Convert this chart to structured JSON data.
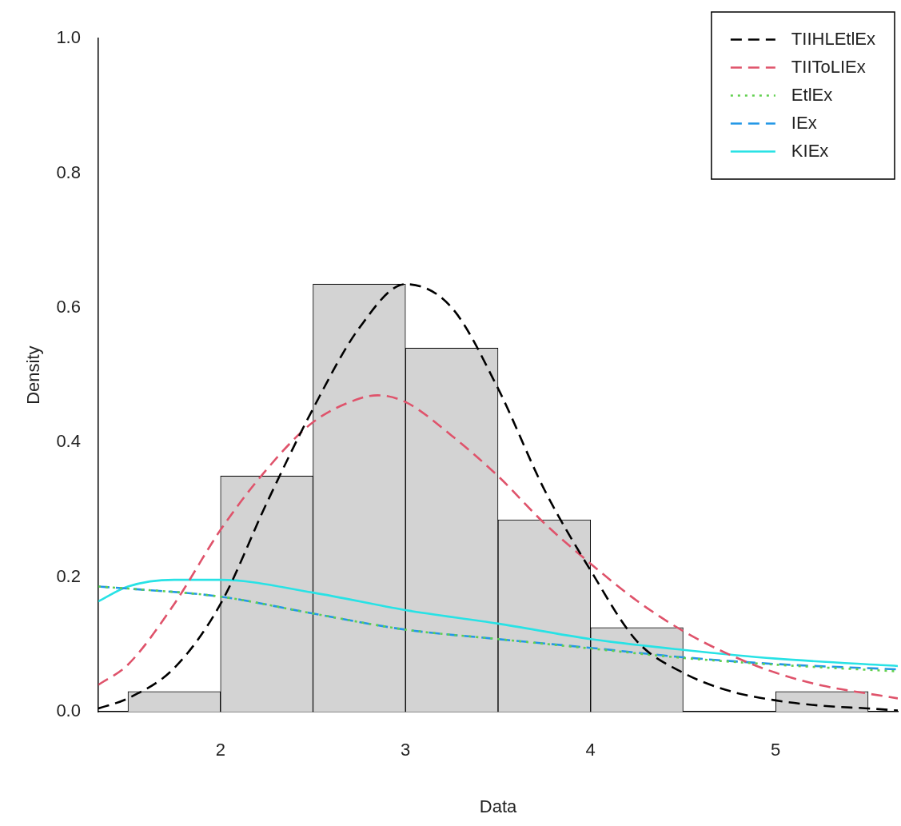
{
  "chart_data": {
    "type": "histogram",
    "xlabel": "Data",
    "ylabel": "Density",
    "color": "#d3d3d3",
    "bins": [
      1.5,
      2,
      2.5,
      3,
      3.5,
      4,
      4.5,
      5,
      5.5
    ],
    "values": [
      0.03,
      0.35,
      0.635,
      0.54,
      0.285,
      0.125,
      0,
      0.03
    ],
    "xlim": [
      1.34,
      5.66
    ],
    "ylim": [
      0,
      1
    ],
    "xticks": [
      2,
      3,
      4,
      5
    ],
    "yticks": [
      {
        "value": 0,
        "label": "0.0"
      },
      {
        "value": 0.2,
        "label": "0.2"
      },
      {
        "value": 0.4,
        "label": "0.4"
      },
      {
        "value": 0.6,
        "label": "0.6"
      },
      {
        "value": 0.8,
        "label": "0.8"
      },
      {
        "value": 1,
        "label": "1.0"
      }
    ],
    "grid": false,
    "legend": "top right",
    "series": [
      {
        "name": "TIIHLEtlEx",
        "type": "line",
        "color": "#000000",
        "line_style": "dashed",
        "x": [
          1.34,
          1.5,
          1.75,
          2,
          2.25,
          2.5,
          2.75,
          3,
          3.25,
          3.5,
          3.75,
          4,
          4.25,
          4.5,
          4.75,
          5,
          5.25,
          5.5,
          5.66
        ],
        "values": [
          0.005,
          0.02,
          0.065,
          0.16,
          0.31,
          0.45,
          0.57,
          0.635,
          0.6,
          0.48,
          0.33,
          0.21,
          0.105,
          0.058,
          0.031,
          0.017,
          0.009,
          0.005,
          0.002
        ]
      },
      {
        "name": "TIIToLIEx",
        "type": "line",
        "color": "#df536b",
        "line_style": "dashed",
        "x": [
          1.34,
          1.5,
          1.75,
          2,
          2.25,
          2.5,
          2.75,
          2.85,
          3,
          3.25,
          3.5,
          3.75,
          4,
          4.25,
          4.5,
          4.75,
          5,
          5.25,
          5.5,
          5.66
        ],
        "values": [
          0.04,
          0.07,
          0.16,
          0.27,
          0.36,
          0.43,
          0.465,
          0.47,
          0.46,
          0.41,
          0.35,
          0.28,
          0.22,
          0.165,
          0.12,
          0.085,
          0.058,
          0.039,
          0.027,
          0.02
        ]
      },
      {
        "name": "EtlEx",
        "type": "line",
        "color": "#61d04f",
        "line_style": "dotted",
        "x": [
          1.34,
          1.5,
          2,
          2.5,
          3,
          3.5,
          4,
          4.5,
          5,
          5.66
        ],
        "values": [
          0.186,
          0.183,
          0.171,
          0.146,
          0.122,
          0.108,
          0.094,
          0.08,
          0.07,
          0.06
        ]
      },
      {
        "name": "IEx",
        "type": "line",
        "color": "#2297e6",
        "line_style": "dashed",
        "x": [
          1.34,
          1.5,
          2,
          2.5,
          3,
          3.5,
          4,
          4.5,
          5,
          5.66
        ],
        "values": [
          0.186,
          0.183,
          0.171,
          0.146,
          0.122,
          0.108,
          0.095,
          0.081,
          0.071,
          0.063
        ]
      },
      {
        "name": "KIEx",
        "type": "line",
        "color": "#28e2e5",
        "line_style": "solid",
        "x": [
          1.34,
          1.5,
          1.75,
          2,
          2.5,
          3,
          3.5,
          4,
          4.5,
          5,
          5.66
        ],
        "values": [
          0.164,
          0.186,
          0.196,
          0.196,
          0.177,
          0.151,
          0.131,
          0.108,
          0.092,
          0.079,
          0.068
        ]
      }
    ]
  }
}
